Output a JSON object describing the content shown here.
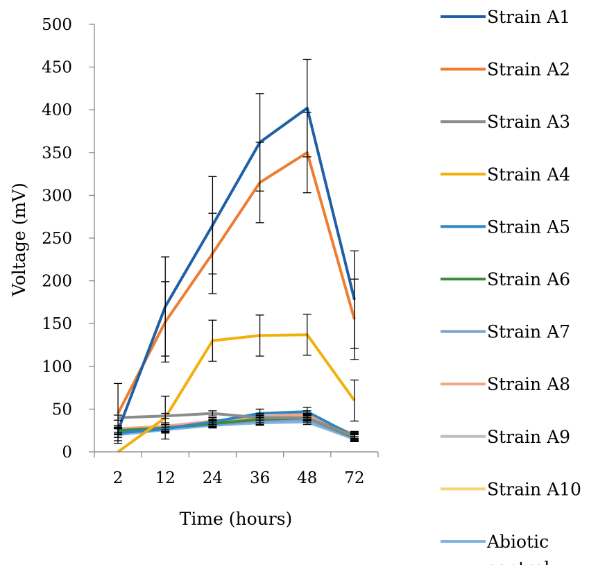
{
  "chart_data": {
    "type": "line",
    "x": [
      "2",
      "12",
      "24",
      "36",
      "48",
      "72"
    ],
    "xlabel": "Time (hours)",
    "ylabel": "Voltage (mV)",
    "ylim": [
      0,
      500
    ],
    "yticks": [
      0,
      50,
      100,
      150,
      200,
      250,
      300,
      350,
      400,
      450,
      500
    ],
    "grid": false,
    "legend_position": "right",
    "series": [
      {
        "name": "Strain A1",
        "color": "#1F5FA6",
        "values": [
          25,
          170,
          265,
          362,
          402,
          178
        ],
        "errors": [
          12,
          58,
          57,
          57,
          57,
          57
        ]
      },
      {
        "name": "Strain A2",
        "color": "#ED7D31",
        "values": [
          45,
          152,
          232,
          315,
          350,
          155
        ],
        "errors": [
          35,
          47,
          47,
          47,
          47,
          47
        ]
      },
      {
        "name": "Strain A3",
        "color": "#8C8C8C",
        "values": [
          40,
          42,
          45,
          40,
          40,
          18
        ],
        "errors": [
          3,
          3,
          3,
          3,
          3,
          3
        ]
      },
      {
        "name": "Strain A4",
        "color": "#F2B00E",
        "values": [
          0,
          40,
          130,
          136,
          137,
          60
        ],
        "errors": [
          0,
          25,
          24,
          24,
          24,
          24
        ]
      },
      {
        "name": "Strain A5",
        "color": "#2E86C1",
        "values": [
          22,
          27,
          35,
          45,
          47,
          18
        ],
        "errors": [
          5,
          5,
          5,
          5,
          5,
          5
        ]
      },
      {
        "name": "Strain A6",
        "color": "#3A8C3A",
        "values": [
          25,
          28,
          33,
          38,
          40,
          17
        ],
        "errors": [
          4,
          4,
          4,
          4,
          4,
          4
        ]
      },
      {
        "name": "Strain A7",
        "color": "#7F9FD0",
        "values": [
          24,
          28,
          32,
          36,
          38,
          16
        ],
        "errors": [
          4,
          4,
          4,
          4,
          4,
          4
        ]
      },
      {
        "name": "Strain A8",
        "color": "#F7A58A",
        "values": [
          27,
          30,
          36,
          41,
          44,
          20
        ],
        "errors": [
          4,
          4,
          4,
          4,
          4,
          4
        ]
      },
      {
        "name": "Strain A9",
        "color": "#BFBFBF",
        "values": [
          25,
          28,
          34,
          38,
          40,
          18
        ],
        "errors": [
          4,
          4,
          4,
          4,
          4,
          4
        ]
      },
      {
        "name": "Strain A10",
        "color": "#FAD27A",
        "values": [
          24,
          28,
          33,
          38,
          41,
          17
        ],
        "errors": [
          4,
          4,
          4,
          4,
          4,
          4
        ]
      },
      {
        "name": "Abiotic control",
        "color": "#82B4DF",
        "values": [
          20,
          26,
          31,
          34,
          35,
          15
        ],
        "errors": [
          3,
          3,
          3,
          3,
          3,
          3
        ]
      }
    ]
  }
}
